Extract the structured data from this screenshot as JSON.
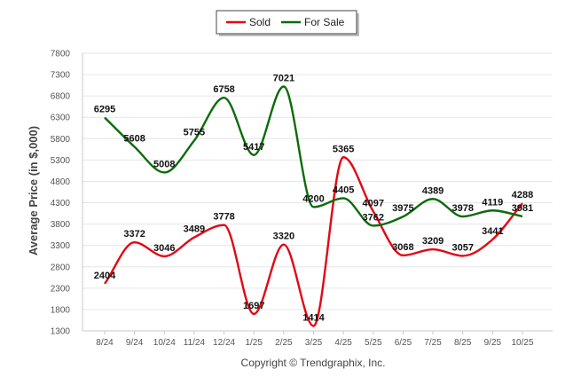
{
  "chart_data": {
    "type": "line",
    "title": "",
    "xlabel": "",
    "ylabel": "Average Price (in $,000)",
    "categories": [
      "8/24",
      "9/24",
      "10/24",
      "11/24",
      "12/24",
      "1/25",
      "2/25",
      "3/25",
      "4/25",
      "5/25",
      "6/25",
      "7/25",
      "8/25",
      "9/25",
      "10/25"
    ],
    "ylim": [
      1300,
      7800
    ],
    "yticks": [
      1300,
      1800,
      2300,
      2800,
      3300,
      3800,
      4300,
      4800,
      5300,
      5800,
      6300,
      6800,
      7300,
      7800
    ],
    "legend_position": "top-center",
    "grid": true,
    "series": [
      {
        "name": "Sold",
        "color": "#e30613",
        "values": [
          2404,
          3372,
          3046,
          3489,
          3778,
          1697,
          3320,
          1414,
          5365,
          4097,
          3068,
          3209,
          3057,
          3441,
          4288
        ]
      },
      {
        "name": "For Sale",
        "color": "#0b6b0b",
        "values": [
          6295,
          5608,
          5008,
          5755,
          6758,
          5417,
          7021,
          4200,
          4405,
          3762,
          3975,
          4389,
          3978,
          4119,
          3981
        ]
      }
    ]
  },
  "footer": {
    "copyright": "Copyright © Trendgraphix, Inc."
  }
}
